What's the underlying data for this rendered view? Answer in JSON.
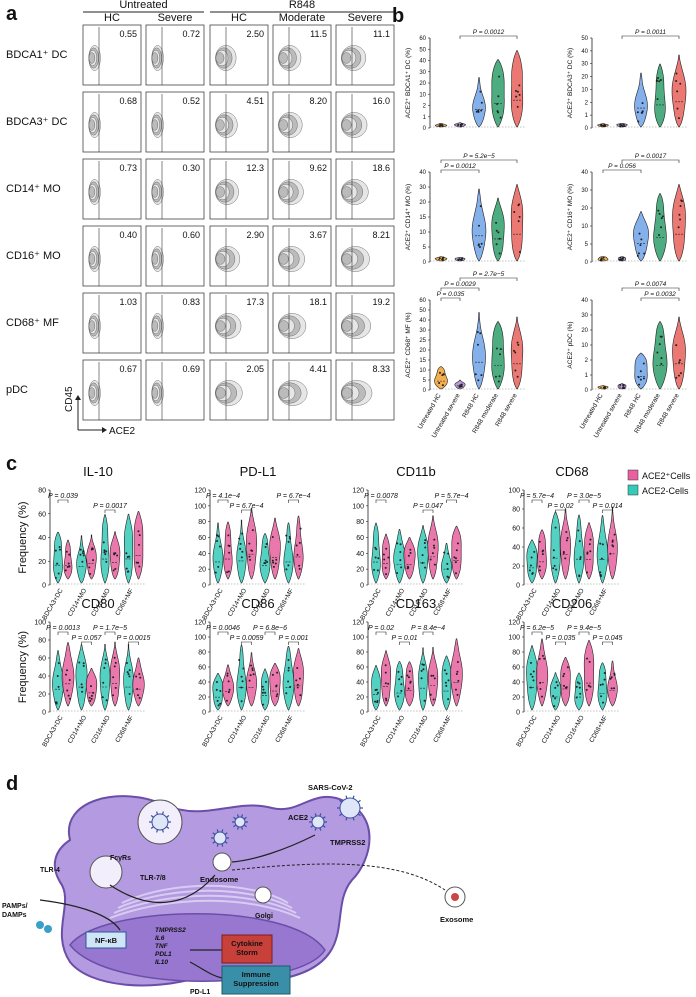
{
  "panel_a": {
    "label": "a",
    "groups": [
      {
        "name": "Untreated",
        "columns": [
          "HC",
          "Severe"
        ]
      },
      {
        "name": "R848",
        "columns": [
          "HC",
          "Moderate",
          "Severe"
        ]
      }
    ],
    "rows": [
      {
        "name": "BDCA1⁺ DC",
        "values": [
          "0.55",
          "0.72",
          "2.50",
          "11.5",
          "11.1"
        ]
      },
      {
        "name": "BDCA3⁺ DC",
        "values": [
          "0.68",
          "0.52",
          "4.51",
          "8.20",
          "16.0"
        ]
      },
      {
        "name": "CD14⁺ MO",
        "values": [
          "0.73",
          "0.30",
          "12.3",
          "9.62",
          "18.6"
        ]
      },
      {
        "name": "CD16⁺ MO",
        "values": [
          "0.40",
          "0.60",
          "2.90",
          "3.67",
          "8.21"
        ]
      },
      {
        "name": "CD68⁺ MF",
        "values": [
          "1.03",
          "0.83",
          "17.3",
          "18.1",
          "19.2"
        ]
      },
      {
        "name": "pDC",
        "values": [
          "0.67",
          "0.69",
          "2.05",
          "4.41",
          "8.33"
        ]
      }
    ],
    "y_axis": "CD45",
    "x_axis": "ACE2"
  },
  "panel_b": {
    "label": "b",
    "categories": [
      "Untreated HC",
      "Untreated severe",
      "R848 HC",
      "R848 moderate",
      "R848 severe"
    ],
    "colors": [
      "#f0a030",
      "#a98bd8",
      "#6fa3e8",
      "#2e9e6a",
      "#e8605a"
    ],
    "plots": [
      {
        "ylabel": "ACE2⁺ BDCA1⁺ DC (%)",
        "yticks": [
          0,
          1,
          2,
          10,
          20,
          30,
          40,
          50,
          60
        ],
        "pvalues": [
          "P = 0.0012"
        ]
      },
      {
        "ylabel": "ACE2⁺ BDCA3⁺ DC (%)",
        "yticks": [
          0,
          1,
          2,
          10,
          20,
          30,
          40,
          50
        ],
        "pvalues": [
          "P = 0.0011"
        ]
      },
      {
        "ylabel": "ACE2⁺ CD14⁺ MO (%)",
        "yticks": [
          0,
          5,
          10,
          15,
          20,
          30,
          40
        ],
        "pvalues": [
          "P = 5.2e−5",
          "P = 0.0012"
        ]
      },
      {
        "ylabel": "ACE2⁺ CD16⁺ MO (%)",
        "yticks": [
          0,
          5,
          10,
          20,
          30,
          40
        ],
        "pvalues": [
          "P = 0.0017",
          "P = 0.056"
        ]
      },
      {
        "ylabel": "ACE2⁺ CD68⁺ MF (%)",
        "yticks": [
          0,
          5,
          10,
          15,
          20,
          25,
          30,
          40,
          50,
          60
        ],
        "pvalues": [
          "P = 2.7e−5",
          "P = 0.0029",
          "P = 0.035"
        ]
      },
      {
        "ylabel": "ACE2⁺ pDC (%)",
        "yticks": [
          0,
          1,
          2,
          10,
          20,
          30,
          40
        ],
        "pvalues": [
          "P = 0.0074",
          "P = 0.0032"
        ]
      }
    ]
  },
  "panel_c": {
    "label": "c",
    "ylabel": "Frequency (%)",
    "categories": [
      "BDCA3+DC",
      "CD14+MO",
      "CD16+MO",
      "CD68+MF"
    ],
    "legend": [
      {
        "name": "ACE2⁺Cells",
        "color": "#e8609e"
      },
      {
        "name": "ACE2-Cells",
        "color": "#35c9b8"
      }
    ],
    "plots": [
      {
        "title": "IL-10",
        "yticks": [
          0,
          20,
          40,
          60,
          80
        ],
        "pvalues": [
          "P = 0.039",
          "P = 0.0017"
        ]
      },
      {
        "title": "PD-L1",
        "yticks": [
          0,
          20,
          40,
          60,
          80,
          100,
          120
        ],
        "pvalues": [
          "P = 4.1e−4",
          "P = 6.7e−4",
          "P = 6.7e−4"
        ]
      },
      {
        "title": "CD11b",
        "yticks": [
          0,
          20,
          40,
          60,
          80,
          100,
          120
        ],
        "pvalues": [
          "P = 0.0078",
          "P = 0.047",
          "P = 5.7e−4"
        ]
      },
      {
        "title": "CD68",
        "yticks": [
          0,
          20,
          40,
          60,
          80,
          100
        ],
        "pvalues": [
          "P = 5.7e−4",
          "P = 0.02",
          "P = 3.0e−5",
          "P = 0.014"
        ]
      },
      {
        "title": "CD80",
        "yticks": [
          0,
          20,
          40,
          60,
          80,
          100
        ],
        "pvalues": [
          "P = 0.0013",
          "P = 0.057",
          "P = 1.7e−5",
          "P = 0.0015"
        ]
      },
      {
        "title": "CD86",
        "yticks": [
          0,
          20,
          40,
          60,
          80,
          100,
          120
        ],
        "pvalues": [
          "P = 0.0046",
          "P = 0.0059",
          "P = 6.8e−6",
          "P = 0.001"
        ]
      },
      {
        "title": "CD163",
        "yticks": [
          0,
          20,
          40,
          60,
          80,
          100,
          120
        ],
        "pvalues": [
          "P = 0.02",
          "P = 0.01",
          "P = 8.4e−4"
        ]
      },
      {
        "title": "CD206",
        "yticks": [
          0,
          20,
          40,
          60,
          80,
          100,
          120
        ],
        "pvalues": [
          "P = 6.2e−5",
          "P = 0.035",
          "P = 9.4e−5",
          "P = 0.045"
        ]
      }
    ]
  },
  "panel_d": {
    "label": "d",
    "virus": "SARS-CoV-2",
    "ace2": "ACE2",
    "tmprss2": "TMPRSS2",
    "fcgr": "FcγRs",
    "tlr78": "TLR-7/8",
    "endosome": "Endosome",
    "exosome": "Exosome",
    "tlr4": "TLR-4",
    "pamps": [
      "PAMPs/",
      "DAMPs"
    ],
    "golgi": "Golgi",
    "nfkb": "NF-κB",
    "genes": [
      {
        "name": "TMPRSS2",
        "color": "#2a7fd4"
      },
      {
        "name": "IL6",
        "color": "#d43a2a"
      },
      {
        "name": "TNF",
        "color": "#d43a2a"
      },
      {
        "name": "PDL1",
        "color": "#2a7fd4"
      },
      {
        "name": "IL10",
        "color": "#2a7fd4"
      }
    ],
    "storm": [
      "Cytokine",
      "Storm"
    ],
    "suppression": [
      "Immune",
      "Suppression"
    ],
    "pdl1": "PD-L1"
  }
}
